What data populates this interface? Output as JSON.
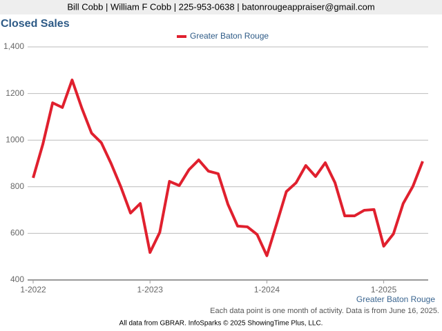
{
  "header": "Bill Cobb | William F Cobb | 225-953-0638 | batonrougeappraiser@gmail.com",
  "chart_data": {
    "type": "line",
    "title": "Closed Sales",
    "categories": [
      "1-2022",
      null,
      null,
      null,
      null,
      null,
      null,
      null,
      null,
      null,
      null,
      null,
      "1-2023",
      null,
      null,
      null,
      null,
      null,
      null,
      null,
      null,
      null,
      null,
      null,
      "1-2024",
      null,
      null,
      null,
      null,
      null,
      null,
      null,
      null,
      null,
      null,
      null,
      "1-2025",
      null,
      null,
      null,
      null
    ],
    "series": [
      {
        "name": "Greater Baton Rouge",
        "color": "#e0202e",
        "values": [
          838,
          983,
          1160,
          1140,
          1258,
          1137,
          1030,
          989,
          900,
          800,
          687,
          728,
          518,
          604,
          823,
          805,
          873,
          915,
          867,
          856,
          725,
          631,
          628,
          595,
          504,
          640,
          779,
          817,
          891,
          844,
          903,
          817,
          675,
          675,
          699,
          702,
          545,
          598,
          728,
          802,
          909
        ]
      }
    ],
    "ylim": [
      400,
      1400
    ],
    "yticks": [
      400,
      600,
      800,
      1000,
      1200,
      {
        "value": 1400,
        "label": "1,400"
      }
    ],
    "grid": true,
    "legend": "top",
    "x_caption": "Greater Baton Rouge",
    "note": "Each data point is one month of activity. Data is from June 16, 2025.",
    "footer": "All data from GBRAR. InfoSparks © 2025 ShowingTime Plus, LLC."
  }
}
